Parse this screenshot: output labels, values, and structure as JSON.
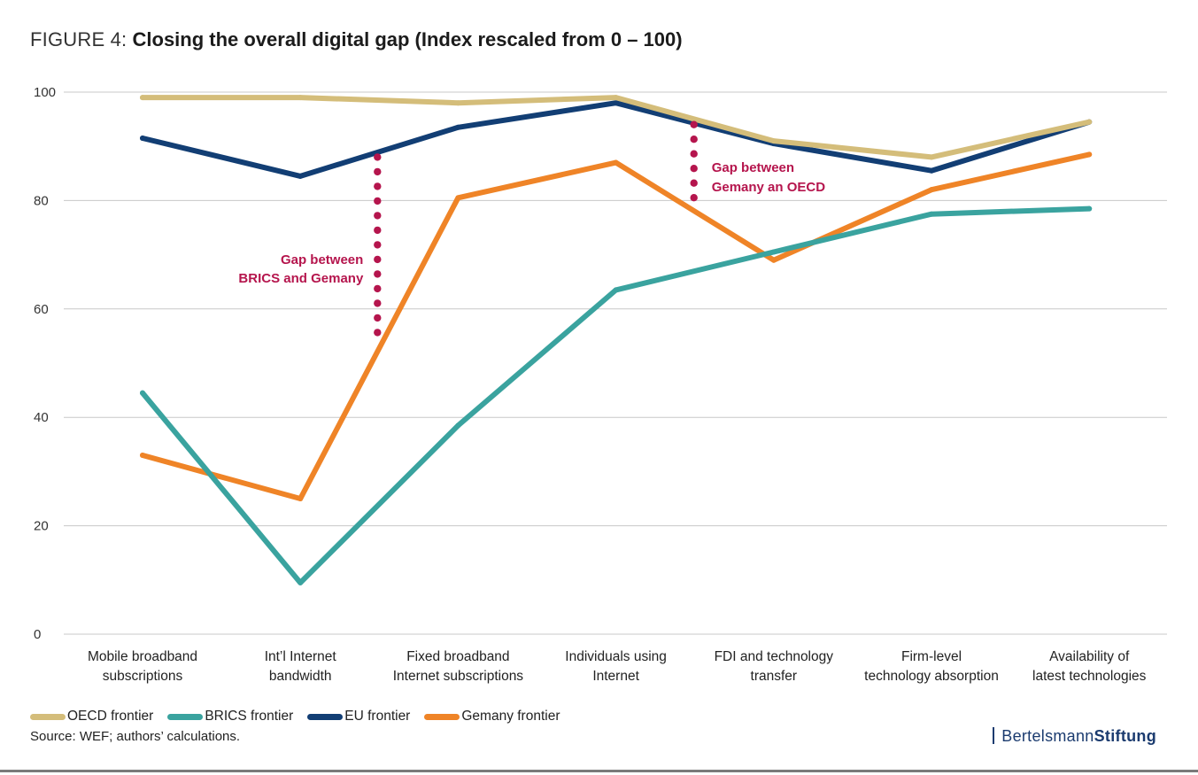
{
  "figure": {
    "prefix": "FIGURE 4:",
    "title": "Closing the overall digital gap (Index rescaled from 0 – 100)"
  },
  "chart_data": {
    "type": "line",
    "categories": [
      [
        "Mobile broadband",
        "subscriptions"
      ],
      [
        "Int’l Internet",
        "bandwidth"
      ],
      [
        "Fixed broadband",
        "Internet subscriptions"
      ],
      [
        "Individuals using",
        "Internet"
      ],
      [
        "FDI and technology",
        "transfer"
      ],
      [
        "Firm-level",
        "technology absorption"
      ],
      [
        "Availability of",
        "latest technologies"
      ]
    ],
    "yticks": [
      0,
      20,
      40,
      60,
      80,
      100
    ],
    "ylim": [
      0,
      100
    ],
    "grid": true,
    "legend_position": "bottom-left",
    "series": [
      {
        "name": "OECD frontier",
        "color": "#d4bd7a",
        "values": [
          99,
          99,
          98,
          99,
          91,
          88,
          94.5
        ]
      },
      {
        "name": "BRICS frontier",
        "color": "#3aa39f",
        "values": [
          44.5,
          9.5,
          38.5,
          63.5,
          70.5,
          77.5,
          78.5
        ]
      },
      {
        "name": "EU frontier",
        "color": "#123e74",
        "values": [
          91.5,
          84.5,
          93.5,
          98,
          90.5,
          85.5,
          94.5
        ]
      },
      {
        "name": "Gemany frontier",
        "color": "#ef8427",
        "values": [
          33,
          25,
          80.5,
          87,
          69,
          82,
          88.5
        ]
      }
    ],
    "annotations": [
      {
        "lines": [
          "Gap between",
          "BRICS and Gemany"
        ],
        "x_position": 1.5,
        "y_from": 53,
        "y_to": 88,
        "color": "#b5154d",
        "text_side": "left"
      },
      {
        "lines": [
          "Gap between",
          "Gemany an OECD"
        ],
        "x_position": 3.5,
        "y_from": 78.5,
        "y_to": 94,
        "color": "#b5154d",
        "text_side": "right"
      }
    ]
  },
  "source": "Source: WEF; authors’ calculations.",
  "brand": {
    "part1": "Bertelsmann",
    "part2": "Stiftung"
  }
}
